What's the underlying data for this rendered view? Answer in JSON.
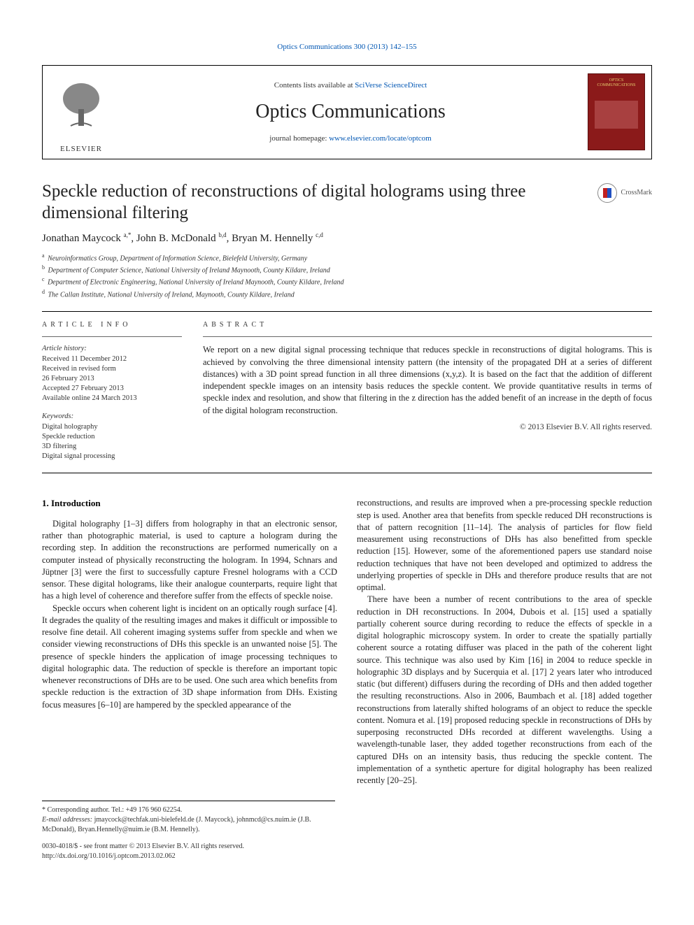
{
  "journal_header": {
    "top_link": "Optics Communications 300 (2013) 142–155",
    "contents_line_prefix": "Contents lists available at ",
    "contents_link": "SciVerse ScienceDirect",
    "title": "Optics Communications",
    "homepage_prefix": "journal homepage: ",
    "homepage_link": "www.elsevier.com/locate/optcom",
    "elsevier_label": "ELSEVIER",
    "cover_title": "OPTICS COMMUNICATIONS"
  },
  "crossmark_label": "CrossMark",
  "article": {
    "title": "Speckle reduction of reconstructions of digital holograms using three dimensional filtering",
    "authors_html": "Jonathan Maycock <sup>a,*</sup>, John B. McDonald <sup>b,d</sup>, Bryan M. Hennelly <sup>c,d</sup>",
    "affiliations": [
      {
        "sup": "a",
        "text": "Neuroinformatics Group, Department of Information Science, Bielefeld University, Germany"
      },
      {
        "sup": "b",
        "text": "Department of Computer Science, National University of Ireland Maynooth, County Kildare, Ireland"
      },
      {
        "sup": "c",
        "text": "Department of Electronic Engineering, National University of Ireland Maynooth, County Kildare, Ireland"
      },
      {
        "sup": "d",
        "text": "The Callan Institute, National University of Ireland, Maynooth, County Kildare, Ireland"
      }
    ]
  },
  "info": {
    "label": "ARTICLE INFO",
    "history_label": "Article history:",
    "history": [
      "Received 11 December 2012",
      "Received in revised form",
      "26 February 2013",
      "Accepted 27 February 2013",
      "Available online 24 March 2013"
    ],
    "keywords_label": "Keywords:",
    "keywords": [
      "Digital holography",
      "Speckle reduction",
      "3D filtering",
      "Digital signal processing"
    ]
  },
  "abstract": {
    "label": "ABSTRACT",
    "text": "We report on a new digital signal processing technique that reduces speckle in reconstructions of digital holograms. This is achieved by convolving the three dimensional intensity pattern (the intensity of the propagated DH at a series of different distances) with a 3D point spread function in all three dimensions (x,y,z). It is based on the fact that the addition of different independent speckle images on an intensity basis reduces the speckle content. We provide quantitative results in terms of speckle index and resolution, and show that filtering in the z direction has the added benefit of an increase in the depth of focus of the digital hologram reconstruction.",
    "copyright": "© 2013 Elsevier B.V. All rights reserved."
  },
  "sections": {
    "intro_heading": "1.  Introduction",
    "col_left_p1": "Digital holography [1–3] differs from holography in that an electronic sensor, rather than photographic material, is used to capture a hologram during the recording step. In addition the reconstructions are performed numerically on a computer instead of physically reconstructing the hologram. In 1994, Schnars and Jüptner [3] were the first to successfully capture Fresnel holograms with a CCD sensor. These digital holograms, like their analogue counterparts, require light that has a high level of coherence and therefore suffer from the effects of speckle noise.",
    "col_left_p2": "Speckle occurs when coherent light is incident on an optically rough surface [4]. It degrades the quality of the resulting images and makes it difficult or impossible to resolve fine detail. All coherent imaging systems suffer from speckle and when we consider viewing reconstructions of DHs this speckle is an unwanted noise [5]. The presence of speckle hinders the application of image processing techniques to digital holographic data. The reduction of speckle is therefore an important topic whenever reconstructions of DHs are to be used. One such area which benefits from speckle reduction is the extraction of 3D shape information from DHs. Existing focus measures [6–10] are hampered by the speckled appearance of the",
    "col_right_p1": "reconstructions, and results are improved when a pre-processing speckle reduction step is used. Another area that benefits from speckle reduced DH reconstructions is that of pattern recognition [11–14]. The analysis of particles for flow field measurement using reconstructions of DHs has also benefitted from speckle reduction [15]. However, some of the aforementioned papers use standard noise reduction techniques that have not been developed and optimized to address the underlying properties of speckle in DHs and therefore produce results that are not optimal.",
    "col_right_p2": "There have been a number of recent contributions to the area of speckle reduction in DH reconstructions. In 2004, Dubois et al. [15] used a spatially partially coherent source during recording to reduce the effects of speckle in a digital holographic microscopy system. In order to create the spatially partially coherent source a rotating diffuser was placed in the path of the coherent light source. This technique was also used by Kim [16] in 2004 to reduce speckle in holographic 3D displays and by Sucerquia et al. [17] 2 years later who introduced static (but different) diffusers during the recording of DHs and then added together the resulting reconstructions. Also in 2006, Baumbach et al. [18] added together reconstructions from laterally shifted holograms of an object to reduce the speckle content. Nomura et al. [19] proposed reducing speckle in reconstructions of DHs by superposing reconstructed DHs recorded at different wavelengths. Using a wavelength-tunable laser, they added together reconstructions from each of the captured DHs on an intensity basis, thus reducing the speckle content. The implementation of a synthetic aperture for digital holography has been realized recently [20–25]."
  },
  "footnotes": {
    "corresponding": "* Corresponding author. Tel.: +49 176 960 62254.",
    "emails_label": "E-mail addresses: ",
    "emails": "jmaycock@techfak.uni-bielefeld.de (J. Maycock), johnmcd@cs.nuim.ie (J.B. McDonald), Bryan.Hennelly@nuim.ie (B.M. Hennelly)."
  },
  "footer": {
    "issn_line": "0030-4018/$ - see front matter © 2013 Elsevier B.V. All rights reserved.",
    "doi_line": "http://dx.doi.org/10.1016/j.optcom.2013.02.062"
  },
  "colors": {
    "link": "#0056b3",
    "cover_bg": "#8b1a1a",
    "cover_title": "#e8d070"
  }
}
